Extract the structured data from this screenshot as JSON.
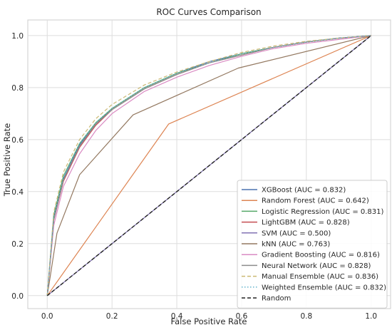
{
  "chart_data": {
    "type": "line",
    "title": "ROC Curves Comparison",
    "xlabel": "False Positive Rate",
    "ylabel": "True Positive Rate",
    "xlim": [
      -0.06,
      1.06
    ],
    "ylim": [
      -0.05,
      1.06
    ],
    "xticks": [
      0.0,
      0.2,
      0.4,
      0.6,
      0.8,
      1.0
    ],
    "yticks": [
      0.0,
      0.2,
      0.4,
      0.6,
      0.8,
      1.0
    ],
    "xtick_labels": [
      "0.0",
      "0.2",
      "0.4",
      "0.6",
      "0.8",
      "1.0"
    ],
    "ytick_labels": [
      "0.0",
      "0.2",
      "0.4",
      "0.6",
      "0.8",
      "1.0"
    ],
    "grid": true,
    "background": "#ffffff",
    "grid_color": "#dddddd",
    "legend_position": "lower-right",
    "series": [
      {
        "name": "XGBoost (AUC = 0.832)",
        "color": "#4c72b0",
        "dash": "solid",
        "x": [
          0,
          0.02,
          0.05,
          0.1,
          0.15,
          0.2,
          0.3,
          0.4,
          0.5,
          0.6,
          0.7,
          0.8,
          0.9,
          1.0
        ],
        "y": [
          0,
          0.3,
          0.45,
          0.58,
          0.66,
          0.72,
          0.8,
          0.855,
          0.9,
          0.93,
          0.955,
          0.975,
          0.99,
          1.0
        ]
      },
      {
        "name": "Random Forest (AUC = 0.642)",
        "color": "#dd8452",
        "dash": "solid",
        "x": [
          0,
          0.375,
          1.0
        ],
        "y": [
          0,
          0.66,
          1.0
        ]
      },
      {
        "name": "Logistic Regression (AUC = 0.831)",
        "color": "#55a868",
        "dash": "solid",
        "x": [
          0,
          0.02,
          0.05,
          0.1,
          0.15,
          0.2,
          0.3,
          0.4,
          0.5,
          0.6,
          0.7,
          0.8,
          0.9,
          1.0
        ],
        "y": [
          0,
          0.31,
          0.46,
          0.585,
          0.665,
          0.72,
          0.8,
          0.855,
          0.895,
          0.93,
          0.955,
          0.975,
          0.99,
          1.0
        ]
      },
      {
        "name": "LightGBM (AUC = 0.828)",
        "color": "#c44e52",
        "dash": "solid",
        "x": [
          0,
          0.02,
          0.05,
          0.1,
          0.15,
          0.2,
          0.3,
          0.4,
          0.5,
          0.6,
          0.7,
          0.8,
          0.9,
          1.0
        ],
        "y": [
          0,
          0.29,
          0.44,
          0.57,
          0.655,
          0.715,
          0.795,
          0.85,
          0.895,
          0.925,
          0.955,
          0.975,
          0.99,
          1.0
        ]
      },
      {
        "name": "SVM (AUC = 0.500)",
        "color": "#8172b3",
        "dash": "solid",
        "x": [
          0,
          1.0
        ],
        "y": [
          0,
          1.0
        ]
      },
      {
        "name": "kNN (AUC = 0.763)",
        "color": "#937860",
        "dash": "solid",
        "x": [
          0,
          0.03,
          0.1,
          0.265,
          0.59,
          1.0
        ],
        "y": [
          0,
          0.24,
          0.465,
          0.695,
          0.875,
          1.0
        ]
      },
      {
        "name": "Gradient Boosting (AUC = 0.816)",
        "color": "#da8bc3",
        "dash": "solid",
        "x": [
          0,
          0.02,
          0.05,
          0.1,
          0.15,
          0.2,
          0.3,
          0.4,
          0.5,
          0.6,
          0.7,
          0.8,
          0.9,
          1.0
        ],
        "y": [
          0,
          0.27,
          0.42,
          0.545,
          0.635,
          0.7,
          0.785,
          0.84,
          0.885,
          0.92,
          0.95,
          0.97,
          0.985,
          1.0
        ]
      },
      {
        "name": "Neural Network (AUC = 0.828)",
        "color": "#8c8c8c",
        "dash": "solid",
        "x": [
          0,
          0.02,
          0.05,
          0.1,
          0.15,
          0.2,
          0.3,
          0.4,
          0.5,
          0.6,
          0.7,
          0.8,
          0.9,
          1.0
        ],
        "y": [
          0,
          0.29,
          0.445,
          0.575,
          0.66,
          0.715,
          0.795,
          0.85,
          0.895,
          0.925,
          0.955,
          0.975,
          0.99,
          1.0
        ]
      },
      {
        "name": "Manual Ensemble (AUC = 0.836)",
        "color": "#ccb974",
        "dash": "dashed",
        "x": [
          0,
          0.02,
          0.05,
          0.1,
          0.15,
          0.2,
          0.3,
          0.4,
          0.5,
          0.6,
          0.7,
          0.8,
          0.9,
          1.0
        ],
        "y": [
          0,
          0.32,
          0.475,
          0.6,
          0.68,
          0.735,
          0.81,
          0.86,
          0.9,
          0.935,
          0.96,
          0.978,
          0.99,
          1.0
        ]
      },
      {
        "name": "Weighted Ensemble (AUC = 0.832)",
        "color": "#64b5cd",
        "dash": "dotted",
        "x": [
          0,
          0.02,
          0.05,
          0.1,
          0.15,
          0.2,
          0.3,
          0.4,
          0.5,
          0.6,
          0.7,
          0.8,
          0.9,
          1.0
        ],
        "y": [
          0,
          0.305,
          0.455,
          0.585,
          0.665,
          0.72,
          0.8,
          0.855,
          0.895,
          0.93,
          0.955,
          0.975,
          0.99,
          1.0
        ]
      },
      {
        "name": "Random",
        "color": "#222222",
        "dash": "dashed",
        "x": [
          0,
          1.0
        ],
        "y": [
          0,
          1.0
        ]
      }
    ]
  }
}
